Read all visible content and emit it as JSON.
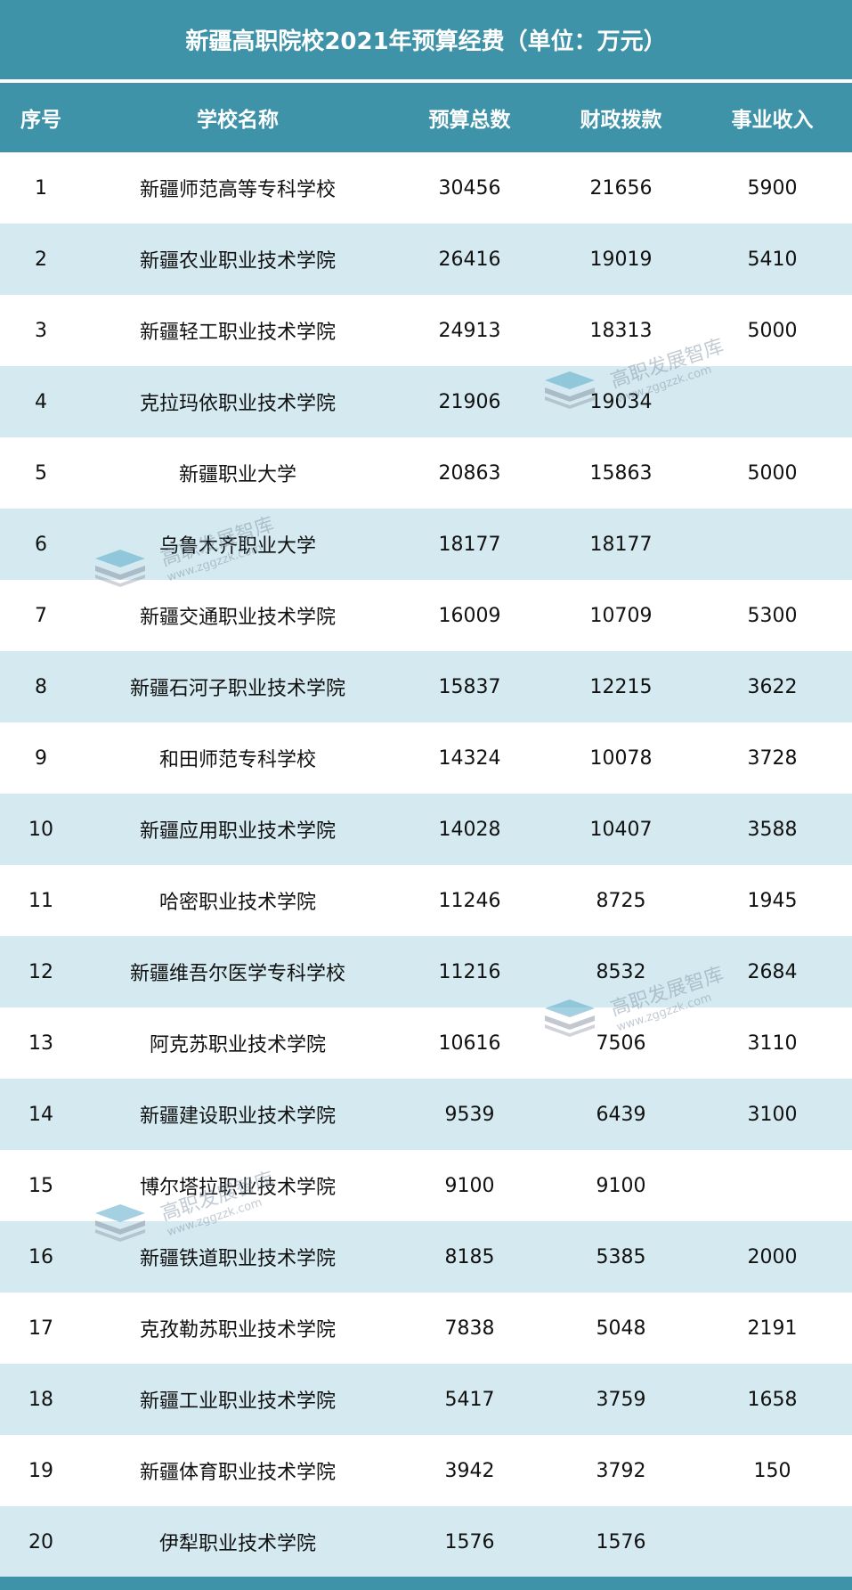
{
  "title": "新疆高职院校2021年预算经费（单位：万元）",
  "headers": [
    "序号",
    "学校名称",
    "预算总数",
    "财政拨款",
    "事业收入"
  ],
  "rows": [
    [
      "1",
      "新疆师范高等专科学校",
      "30456",
      "21656",
      "5900"
    ],
    [
      "2",
      "新疆农业职业技术学院",
      "26416",
      "19019",
      "5410"
    ],
    [
      "3",
      "新疆轻工职业技术学院",
      "24913",
      "18313",
      "5000"
    ],
    [
      "4",
      "克拉玛依职业技术学院",
      "21906",
      "19034",
      ""
    ],
    [
      "5",
      "新疆职业大学",
      "20863",
      "15863",
      "5000"
    ],
    [
      "6",
      "乌鲁木齐职业大学",
      "18177",
      "18177",
      ""
    ],
    [
      "7",
      "新疆交通职业技术学院",
      "16009",
      "10709",
      "5300"
    ],
    [
      "8",
      "新疆石河子职业技术学院",
      "15837",
      "12215",
      "3622"
    ],
    [
      "9",
      "和田师范专科学校",
      "14324",
      "10078",
      "3728"
    ],
    [
      "10",
      "新疆应用职业技术学院",
      "14028",
      "10407",
      "3588"
    ],
    [
      "11",
      "哈密职业技术学院",
      "11246",
      "8725",
      "1945"
    ],
    [
      "12",
      "新疆维吾尔医学专科学校",
      "11216",
      "8532",
      "2684"
    ],
    [
      "13",
      "阿克苏职业技术学院",
      "10616",
      "7506",
      "3110"
    ],
    [
      "14",
      "新疆建设职业技术学院",
      "9539",
      "6439",
      "3100"
    ],
    [
      "15",
      "博尔塔拉职业技术学院",
      "9100",
      "9100",
      ""
    ],
    [
      "16",
      "新疆铁道职业技术学院",
      "8185",
      "5385",
      "2000"
    ],
    [
      "17",
      "克孜勒苏职业技术学院",
      "7838",
      "5048",
      "2191"
    ],
    [
      "18",
      "新疆工业职业技术学院",
      "5417",
      "3759",
      "1658"
    ],
    [
      "19",
      "新疆体育职业技术学院",
      "3942",
      "3792",
      "150"
    ],
    [
      "20",
      "伊犁职业技术学院",
      "1576",
      "1576",
      ""
    ]
  ],
  "watermark": {
    "name": "高职发展智库",
    "url": "www.zggzzk.com"
  },
  "colors": {
    "header": "#3f93a8",
    "stripe": "#d5eaf0"
  }
}
